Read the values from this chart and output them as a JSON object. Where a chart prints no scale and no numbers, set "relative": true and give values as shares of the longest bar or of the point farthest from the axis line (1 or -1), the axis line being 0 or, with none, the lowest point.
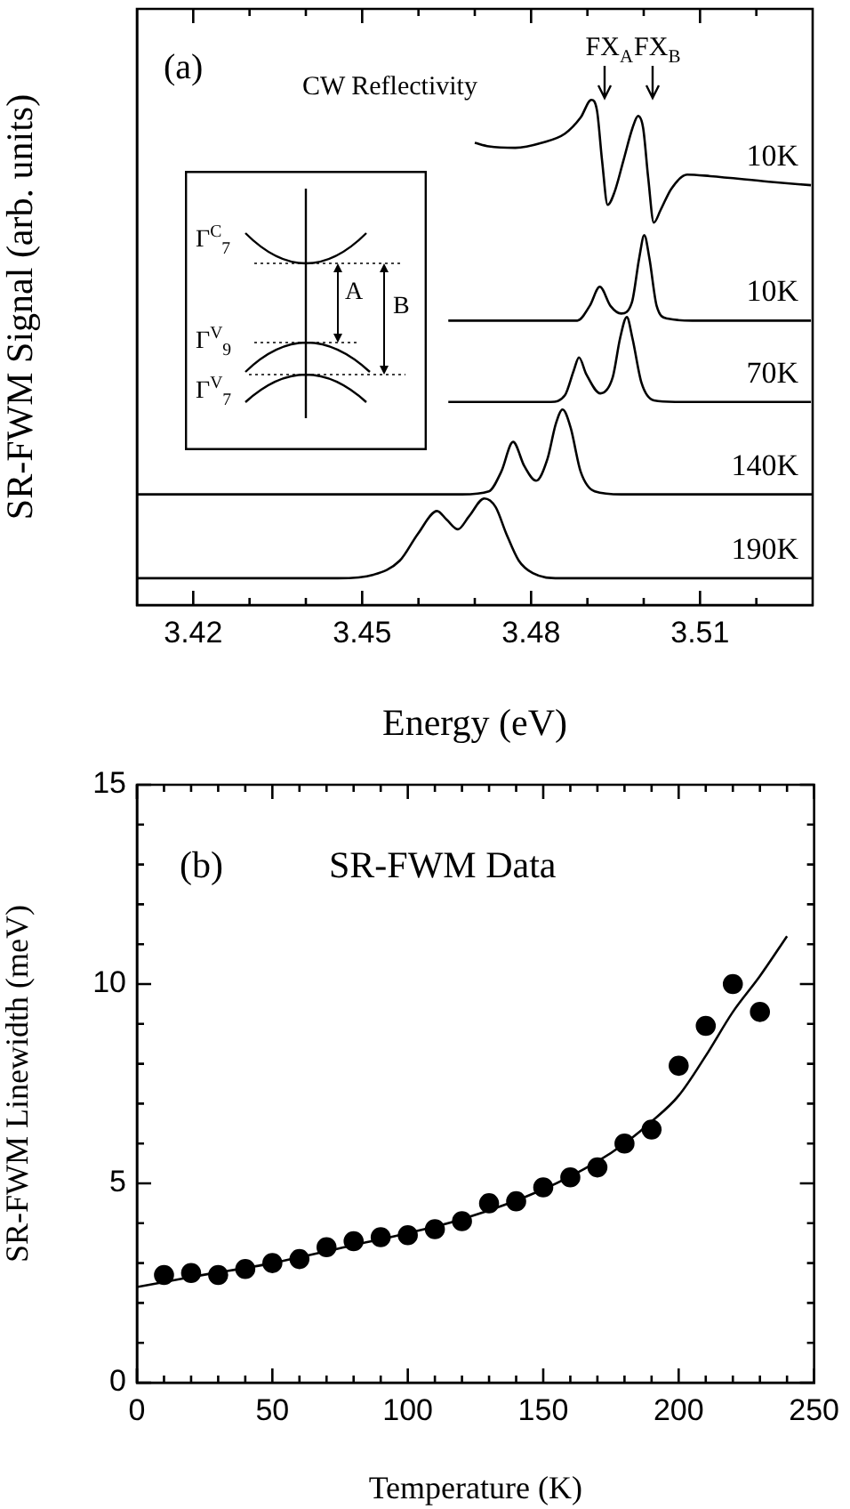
{
  "chart_data": [
    {
      "type": "line",
      "xlabel": "Energy (eV)",
      "ylabel": "SR-FWM Signal (arb. units)",
      "relative": true,
      "xlim": [
        3.41,
        3.53
      ],
      "xticks": [
        3.42,
        {
          "value": 3.43,
          "label": null
        },
        {
          "value": 3.44,
          "label": null
        },
        3.45,
        {
          "value": 3.46,
          "label": null
        },
        {
          "value": 3.47,
          "label": null
        },
        3.48,
        {
          "value": 3.49,
          "label": null
        },
        {
          "value": 3.5,
          "label": null
        },
        3.51,
        {
          "value": 3.52,
          "label": null
        }
      ],
      "annotations": [
        "(a)",
        "CW Reflectivity",
        "FX$_{A}$",
        "FX$_{B}$",
        "Γ$^{C}$$_{7}$",
        "Γ$^{V}$$_{9}$",
        "Γ$^{V}$$_{7}$",
        "A",
        "B"
      ],
      "series": [
        {
          "name": "10K",
          "color": "#000000",
          "x": [
            3.47,
            3.4725,
            3.4772,
            3.4819,
            3.486,
            3.4888,
            3.4907,
            3.4917,
            3.4926,
            3.4936,
            3.4948,
            3.4964,
            3.498,
            3.499,
            3.4999,
            3.5008,
            3.5018,
            3.503,
            3.5049,
            3.5077,
            3.5118,
            3.5222,
            3.5297
          ],
          "values": [
            0.915,
            0.908,
            0.905,
            0.915,
            0.933,
            0.965,
            1.0,
            0.979,
            0.88,
            0.792,
            0.817,
            0.88,
            0.944,
            0.968,
            0.944,
            0.845,
            0.757,
            0.782,
            0.824,
            0.852,
            0.849,
            0.838,
            0.831
          ]
        },
        {
          "name": "10K",
          "color": "#000000",
          "x": [
            3.4653,
            3.4882,
            3.4904,
            3.4922,
            3.4941,
            3.496,
            3.4979,
            3.4992,
            3.5001,
            3.501,
            3.5023,
            3.5042,
            3.5086,
            3.5297
          ],
          "values": [
            0.563,
            0.563,
            0.592,
            0.63,
            0.592,
            0.577,
            0.599,
            0.687,
            0.732,
            0.687,
            0.592,
            0.567,
            0.563,
            0.563
          ]
        },
        {
          "name": "70K",
          "color": "#000000",
          "x": [
            3.4653,
            3.4835,
            3.486,
            3.4876,
            3.4885,
            3.4898,
            3.4923,
            3.4945,
            3.4958,
            3.497,
            3.498,
            3.4996,
            3.5018,
            3.5056,
            3.5297
          ],
          "values": [
            0.402,
            0.402,
            0.415,
            0.465,
            0.49,
            0.457,
            0.419,
            0.451,
            0.528,
            0.57,
            0.528,
            0.44,
            0.405,
            0.402,
            0.402
          ]
        },
        {
          "name": "140K",
          "color": "#000000",
          "x": [
            3.41,
            3.4677,
            3.4725,
            3.4747,
            3.4768,
            3.4788,
            3.4809,
            3.4829,
            3.4844,
            3.4856,
            3.487,
            3.4888,
            3.4913,
            3.4961,
            3.53
          ],
          "values": [
            0.219,
            0.219,
            0.225,
            0.264,
            0.323,
            0.275,
            0.246,
            0.289,
            0.359,
            0.387,
            0.352,
            0.264,
            0.225,
            0.219,
            0.219
          ]
        },
        {
          "name": "190K",
          "color": "#000000",
          "x": [
            3.41,
            3.4457,
            3.452,
            3.4567,
            3.4599,
            3.4633,
            3.465,
            3.467,
            3.469,
            3.4717,
            3.4737,
            3.4756,
            3.4778,
            3.4803,
            3.485,
            3.53
          ],
          "values": [
            0.053,
            0.053,
            0.06,
            0.088,
            0.141,
            0.186,
            0.169,
            0.15,
            0.176,
            0.211,
            0.194,
            0.141,
            0.088,
            0.063,
            0.053,
            0.053
          ]
        }
      ]
    },
    {
      "type": "scatter",
      "xlabel": "Temperature (K)",
      "ylabel": "SR-FWM Linewidth (meV)",
      "xlim": [
        0,
        250
      ],
      "ylim": [
        0,
        15
      ],
      "marker": "circle",
      "xticks": [
        0,
        {
          "value": 10,
          "label": null
        },
        {
          "value": 20,
          "label": null
        },
        {
          "value": 30,
          "label": null
        },
        {
          "value": 40,
          "label": null
        },
        50,
        {
          "value": 60,
          "label": null
        },
        {
          "value": 70,
          "label": null
        },
        {
          "value": 80,
          "label": null
        },
        {
          "value": 90,
          "label": null
        },
        100,
        {
          "value": 110,
          "label": null
        },
        {
          "value": 120,
          "label": null
        },
        {
          "value": 130,
          "label": null
        },
        {
          "value": 140,
          "label": null
        },
        150,
        {
          "value": 160,
          "label": null
        },
        {
          "value": 170,
          "label": null
        },
        {
          "value": 180,
          "label": null
        },
        {
          "value": 190,
          "label": null
        },
        200,
        {
          "value": 210,
          "label": null
        },
        {
          "value": 220,
          "label": null
        },
        {
          "value": 230,
          "label": null
        },
        {
          "value": 240,
          "label": null
        },
        250
      ],
      "yticks": [
        0,
        {
          "value": 1,
          "label": null
        },
        {
          "value": 2,
          "label": null
        },
        {
          "value": 3,
          "label": null
        },
        {
          "value": 4,
          "label": null
        },
        5,
        {
          "value": 6,
          "label": null
        },
        {
          "value": 7,
          "label": null
        },
        {
          "value": 8,
          "label": null
        },
        {
          "value": 9,
          "label": null
        },
        10,
        {
          "value": 11,
          "label": null
        },
        {
          "value": 12,
          "label": null
        },
        {
          "value": 13,
          "label": null
        },
        {
          "value": 14,
          "label": null
        },
        15
      ],
      "annotations": [
        "(b)",
        "SR-FWM Data"
      ],
      "series": [
        {
          "type": "scatter",
          "color": "#000000",
          "x": [
            10,
            20,
            30,
            40,
            50,
            60,
            70,
            80,
            90,
            100,
            110,
            120,
            130,
            140,
            150,
            160,
            170,
            180,
            190,
            200,
            210,
            220,
            230
          ],
          "values": [
            2.7,
            2.75,
            2.7,
            2.85,
            3.0,
            3.1,
            3.4,
            3.55,
            3.65,
            3.7,
            3.85,
            4.05,
            4.5,
            4.55,
            4.9,
            5.15,
            5.4,
            6.0,
            6.35,
            7.95,
            8.95,
            10.0,
            9.3
          ]
        },
        {
          "type": "line",
          "marker": "none",
          "color": "#000000",
          "x": [
            0,
            20,
            50,
            80,
            100,
            120,
            150,
            170,
            180,
            190,
            200,
            210,
            220,
            230,
            240
          ],
          "values": [
            2.4,
            2.65,
            3.0,
            3.45,
            3.75,
            4.1,
            4.85,
            5.55,
            6.0,
            6.55,
            7.2,
            8.2,
            9.3,
            10.2,
            11.2
          ]
        }
      ]
    }
  ]
}
